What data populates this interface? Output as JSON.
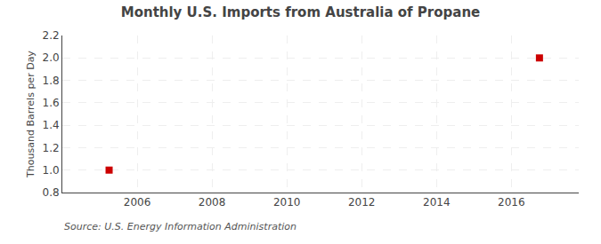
{
  "chart_data": {
    "type": "scatter",
    "title": "Monthly U.S. Imports from Australia of Propane",
    "ylabel": "Thousand Barrels per Day",
    "annotations": [
      "Source: U.S. Energy Information Administration"
    ],
    "x": [
      2005.25,
      2016.75
    ],
    "values": [
      1.0,
      2.0
    ],
    "color": "#cc0000",
    "marker": "square",
    "xlim": [
      2004.0,
      2017.8
    ],
    "xticks": [
      2006,
      2008,
      2010,
      2012,
      2014,
      2016
    ],
    "ylim": [
      0.8,
      2.2
    ],
    "yticks": [
      0.8,
      {
        "value": 1.0,
        "label": "1.0"
      },
      1.2,
      1.4,
      1.6,
      1.8,
      {
        "value": 2.0,
        "label": "2.0"
      },
      2.2
    ],
    "grid": true
  }
}
